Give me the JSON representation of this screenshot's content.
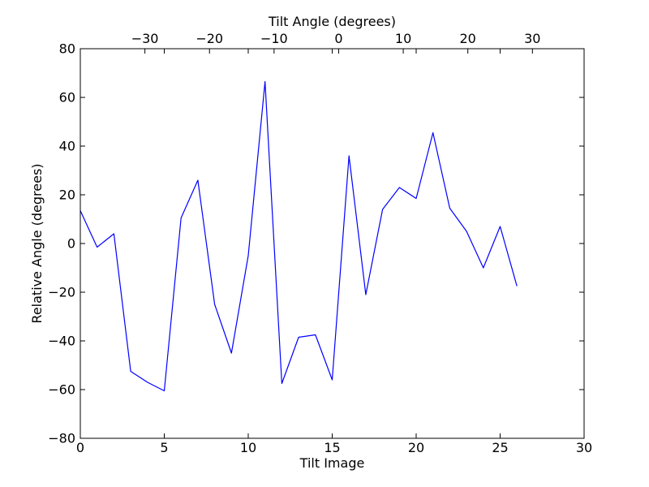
{
  "chart_data": {
    "type": "line",
    "xlabel": "Tilt Image",
    "ylabel": "Relative Angle (degrees)",
    "top_xlabel": "Tilt Angle (degrees)",
    "xlim": [
      0,
      30
    ],
    "ylim": [
      -80,
      80
    ],
    "top_xlim": [
      -40,
      38
    ],
    "xticks": [
      0,
      5,
      10,
      15,
      20,
      25,
      30
    ],
    "yticks": [
      -80,
      -60,
      -40,
      -20,
      0,
      20,
      40,
      60,
      80
    ],
    "top_xticks": [
      -30,
      -20,
      -10,
      0,
      10,
      20,
      30
    ],
    "grid": false,
    "line_color": "#0000ff",
    "series": [
      {
        "x": [
          0,
          1,
          2,
          3,
          4,
          5,
          6,
          7,
          8,
          9,
          10,
          11,
          12,
          13,
          14,
          15,
          16,
          17,
          18,
          19,
          20,
          21,
          22,
          23,
          24,
          25,
          26
        ],
        "values": [
          13.5,
          -1.5,
          4,
          -52.5,
          -57,
          -60.5,
          10.5,
          26,
          -25,
          -45,
          -5,
          66.5,
          -57.5,
          -38.5,
          -37.5,
          -56,
          36,
          -21,
          14,
          23,
          18.5,
          45.5,
          14.5,
          5,
          -10,
          7,
          -17.5
        ]
      }
    ]
  }
}
